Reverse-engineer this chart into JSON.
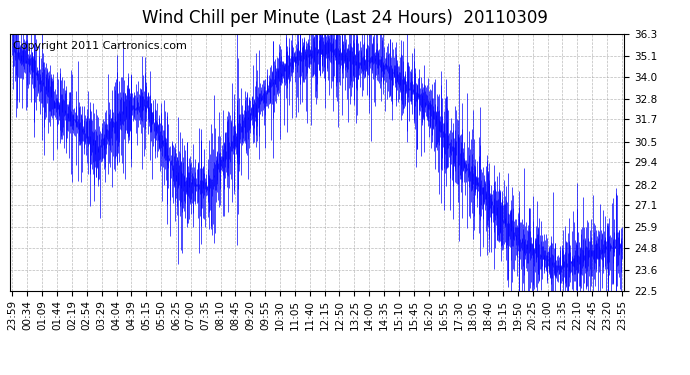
{
  "title": "Wind Chill per Minute (Last 24 Hours)  20110309",
  "copyright_text": "Copyright 2011 Cartronics.com",
  "bar_color": "#0000FF",
  "background_color": "#FFFFFF",
  "grid_color": "#AAAAAA",
  "ylim": [
    22.5,
    36.3
  ],
  "yticks": [
    22.5,
    23.6,
    24.8,
    25.9,
    27.1,
    28.2,
    29.4,
    30.5,
    31.7,
    32.8,
    34.0,
    35.1,
    36.3
  ],
  "title_fontsize": 12,
  "copyright_fontsize": 8,
  "tick_fontsize": 7.5,
  "x_tick_labels": [
    "23:59",
    "00:34",
    "01:09",
    "01:44",
    "02:19",
    "02:54",
    "03:29",
    "04:04",
    "04:39",
    "05:15",
    "05:50",
    "06:25",
    "07:00",
    "07:35",
    "08:10",
    "08:45",
    "09:20",
    "09:55",
    "10:30",
    "11:05",
    "11:40",
    "12:15",
    "12:50",
    "13:25",
    "14:00",
    "14:35",
    "15:10",
    "15:45",
    "16:20",
    "16:55",
    "17:30",
    "18:05",
    "18:40",
    "19:15",
    "19:50",
    "20:25",
    "21:00",
    "21:35",
    "22:10",
    "22:45",
    "23:20",
    "23:55"
  ],
  "num_bars": 1440,
  "seed": 42
}
